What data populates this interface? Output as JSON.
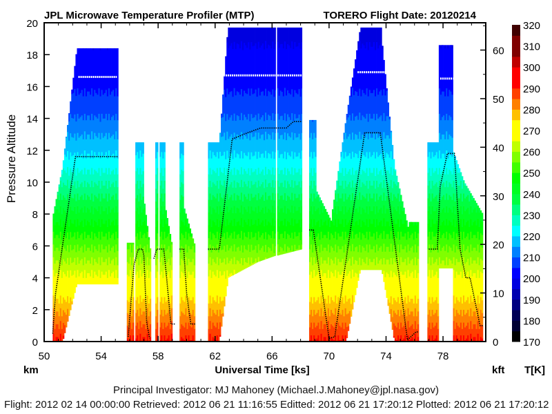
{
  "chart_data": {
    "type": "heatmap",
    "title": "JPL Microwave Temperature Profiler (MTP)",
    "title_right": "TORERO  Flight Date: 20120214",
    "xlabel": "Universal Time [ks]",
    "ylabel": "Pressure Altitude",
    "y_unit_left": "km",
    "y_unit_right": "kft",
    "colorbar_label": "T[K]",
    "xlim": [
      50,
      81
    ],
    "ylim": [
      0,
      20
    ],
    "y2lim_kft": [
      0,
      65.6
    ],
    "x_ticks": [
      "50",
      "54",
      "58",
      "62",
      "66",
      "70",
      "74",
      "78"
    ],
    "y_ticks": [
      "0",
      "2",
      "4",
      "6",
      "8",
      "10",
      "12",
      "14",
      "16",
      "18",
      "20"
    ],
    "y2_ticks": [
      "0",
      "10",
      "20",
      "30",
      "40",
      "50",
      "60"
    ],
    "colorbar": {
      "min": 170,
      "max": 320,
      "step": 5,
      "tick_labels": [
        "170",
        "180",
        "190",
        "200",
        "210",
        "220",
        "230",
        "240",
        "250",
        "260",
        "270",
        "280",
        "290",
        "300",
        "310",
        "320"
      ],
      "colors": [
        "#000000",
        "#000033",
        "#000055",
        "#000080",
        "#0000b0",
        "#0000e0",
        "#0000ff",
        "#0040ff",
        "#0080ff",
        "#00c0ff",
        "#00ffff",
        "#00ffc0",
        "#00ff80",
        "#00ff40",
        "#00ff20",
        "#00ff00",
        "#40ff00",
        "#80ff00",
        "#c0ff00",
        "#ffff00",
        "#ffff00",
        "#ffc000",
        "#ff8000",
        "#ff4000",
        "#ff0000",
        "#ff0000",
        "#c00000",
        "#800000",
        "#800000",
        "#400000"
      ]
    },
    "curtain_segments_note_columns": [
      "t_start_ks",
      "t_end_ks",
      "top_km_start",
      "top_km_end",
      "bottom_km_start",
      "bottom_km_end"
    ],
    "curtain_segments": [
      [
        50.6,
        51.3,
        7.8,
        11,
        0,
        0
      ],
      [
        51.3,
        52.3,
        11,
        18.4,
        0,
        3.6
      ],
      [
        52.3,
        55.2,
        18.4,
        18.4,
        3.6,
        3.6
      ],
      [
        55.8,
        56.3,
        6.2,
        6.2,
        0,
        0
      ],
      [
        56.4,
        57.0,
        12.5,
        12.5,
        0,
        0
      ],
      [
        57.0,
        57.5,
        9,
        5.5,
        0,
        0
      ],
      [
        57.8,
        58.0,
        12.5,
        12.5,
        0,
        0
      ],
      [
        58.1,
        58.5,
        12.5,
        12.5,
        0,
        0
      ],
      [
        58.5,
        59.0,
        8.5,
        6,
        0,
        0
      ],
      [
        59.5,
        59.8,
        12.5,
        12.5,
        0,
        0
      ],
      [
        59.8,
        60.6,
        8.5,
        6,
        0,
        0
      ],
      [
        61.5,
        62.3,
        12.5,
        12.5,
        0,
        0
      ],
      [
        62.3,
        62.9,
        12.5,
        19.7,
        0,
        3.8
      ],
      [
        62.9,
        65.0,
        19.7,
        19.7,
        4.0,
        5.0
      ],
      [
        65.0,
        66.25,
        19.7,
        19.7,
        5.0,
        5.4
      ],
      [
        66.35,
        68.1,
        19.7,
        19.7,
        5.4,
        5.8
      ],
      [
        68.6,
        69.1,
        13.9,
        13.9,
        0,
        0
      ],
      [
        69.1,
        70.2,
        9.5,
        7.5,
        0,
        0
      ],
      [
        70.2,
        71.2,
        8,
        14,
        0,
        0
      ],
      [
        71.2,
        72.2,
        14,
        19.7,
        0,
        4.5
      ],
      [
        72.2,
        73.7,
        19.7,
        19.7,
        4.5,
        4.5
      ],
      [
        73.7,
        74.6,
        19,
        11,
        4.5,
        0
      ],
      [
        74.6,
        75.6,
        11,
        7,
        0,
        0
      ],
      [
        75.6,
        76.3,
        7.5,
        7.5,
        0,
        0
      ],
      [
        76.9,
        77.7,
        12.5,
        12.5,
        0,
        0
      ],
      [
        77.7,
        78.7,
        18.6,
        18.6,
        4.6,
        4.6
      ],
      [
        78.7,
        79.5,
        12,
        10,
        0,
        0
      ],
      [
        79.5,
        80.8,
        10,
        8,
        0,
        0
      ]
    ],
    "aircraft_altitude_km": [
      [
        [
          50.6,
          0.5
        ],
        [
          50.8,
          3
        ],
        [
          52.2,
          11.6
        ],
        [
          55.2,
          11.6
        ]
      ],
      [
        [
          55.9,
          0.3
        ],
        [
          56.3,
          4.8
        ],
        [
          56.6,
          5.8
        ],
        [
          56.9,
          5.8
        ],
        [
          57.0,
          5.4
        ],
        [
          57.2,
          1.2
        ],
        [
          57.4,
          0.2
        ]
      ],
      [
        [
          57.7,
          5.2
        ],
        [
          57.9,
          5.8
        ],
        [
          58.4,
          5.8
        ],
        [
          58.6,
          4.0
        ],
        [
          58.9,
          1.1
        ],
        [
          59.2,
          1.1
        ]
      ],
      [
        [
          59.5,
          5.8
        ],
        [
          59.8,
          5.8
        ],
        [
          60.0,
          3.0
        ],
        [
          60.3,
          1.1
        ],
        [
          60.6,
          1.1
        ]
      ],
      [
        [
          61.5,
          5.8
        ],
        [
          62.3,
          5.8
        ],
        [
          63.2,
          12.7
        ],
        [
          64.0,
          13.0
        ],
        [
          65.2,
          13.4
        ],
        [
          67.0,
          13.4
        ],
        [
          67.5,
          13.8
        ],
        [
          68.1,
          13.8
        ]
      ],
      [
        [
          68.6,
          7.0
        ],
        [
          68.9,
          7.0
        ],
        [
          70.0,
          0.2
        ],
        [
          70.4,
          0.3
        ],
        [
          72.5,
          13.1
        ],
        [
          73.6,
          13.1
        ],
        [
          75.5,
          0.1
        ],
        [
          76.1,
          0.6
        ],
        [
          76.3,
          0.6
        ]
      ],
      [
        [
          77.0,
          5.8
        ],
        [
          77.6,
          5.8
        ],
        [
          77.8,
          9.7
        ],
        [
          78.3,
          11.8
        ],
        [
          78.8,
          11.8
        ],
        [
          79.2,
          5.8
        ],
        [
          79.6,
          4.0
        ],
        [
          79.9,
          4.0
        ],
        [
          80.6,
          1.0
        ],
        [
          80.8,
          1.0
        ]
      ]
    ],
    "tropopause_km": [
      [
        52.4,
        55.1,
        16.6
      ],
      [
        62.6,
        68.1,
        16.7
      ],
      [
        72.0,
        74.0,
        16.9
      ],
      [
        77.8,
        78.7,
        16.5
      ]
    ]
  },
  "footer": {
    "investigator": "Principal Investigator: MJ Mahoney (Michael.J.Mahoney@jpl.nasa.gov)",
    "timestamps": "Flight: 2012 02 14 00:00:00   Retrieved: 2012 06 21 11:16:55   Editted: 2012 06 21 17:20:12  Plotted: 2012 06 21 17:20:12"
  }
}
